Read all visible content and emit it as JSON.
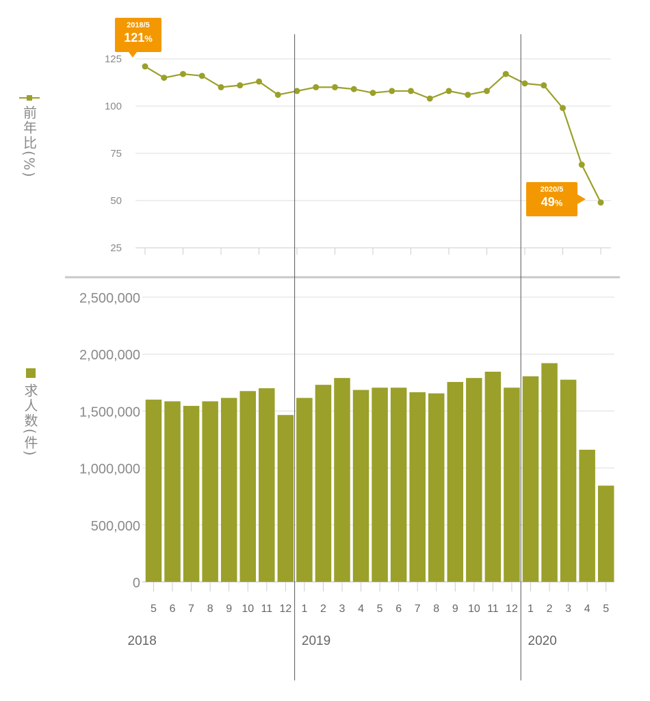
{
  "colors": {
    "series": "#9aa02a",
    "callout": "#f39800",
    "grid": "#dddddd",
    "text": "#8a8a8a"
  },
  "legend": {
    "line_label": "前年比(%)",
    "bar_label": "求人数(件)"
  },
  "callouts": [
    {
      "date": "2018/5",
      "value": "121",
      "unit": "%"
    },
    {
      "date": "2020/5",
      "value": "49",
      "unit": "%"
    }
  ],
  "chart_data": [
    {
      "type": "line",
      "name": "前年比(%)",
      "x": [
        "2018/5",
        "2018/6",
        "2018/7",
        "2018/8",
        "2018/9",
        "2018/10",
        "2018/11",
        "2018/12",
        "2019/1",
        "2019/2",
        "2019/3",
        "2019/4",
        "2019/5",
        "2019/6",
        "2019/7",
        "2019/8",
        "2019/9",
        "2019/10",
        "2019/11",
        "2019/12",
        "2020/1",
        "2020/2",
        "2020/3",
        "2020/4",
        "2020/5"
      ],
      "values": [
        121,
        115,
        117,
        116,
        110,
        111,
        113,
        106,
        108,
        110,
        110,
        109,
        107,
        108,
        108,
        104,
        108,
        106,
        108,
        117,
        112,
        111,
        99,
        69,
        49
      ],
      "ylim": [
        25,
        125
      ],
      "yticks": [
        "125",
        "100",
        "75",
        "50",
        "25"
      ],
      "grid": true
    },
    {
      "type": "bar",
      "name": "求人数(件)",
      "categories": [
        "5",
        "6",
        "7",
        "8",
        "9",
        "10",
        "11",
        "12",
        "1",
        "2",
        "3",
        "4",
        "5",
        "6",
        "7",
        "8",
        "9",
        "10",
        "11",
        "12",
        "1",
        "2",
        "3",
        "4",
        "5"
      ],
      "values": [
        1600000,
        1585000,
        1545000,
        1585000,
        1615000,
        1675000,
        1700000,
        1465000,
        1615000,
        1730000,
        1790000,
        1685000,
        1705000,
        1705000,
        1665000,
        1655000,
        1755000,
        1790000,
        1845000,
        1705000,
        1805000,
        1920000,
        1775000,
        1160000,
        845000
      ],
      "ylim": [
        0,
        2500000
      ],
      "yticks": [
        "2,500,000",
        "2,000,000",
        "1,500,000",
        "1,000,000",
        "500,000",
        "0"
      ],
      "years": [
        {
          "label": "2018",
          "start_index": 0
        },
        {
          "label": "2019",
          "start_index": 8
        },
        {
          "label": "2020",
          "start_index": 20
        }
      ],
      "grid": true
    }
  ]
}
